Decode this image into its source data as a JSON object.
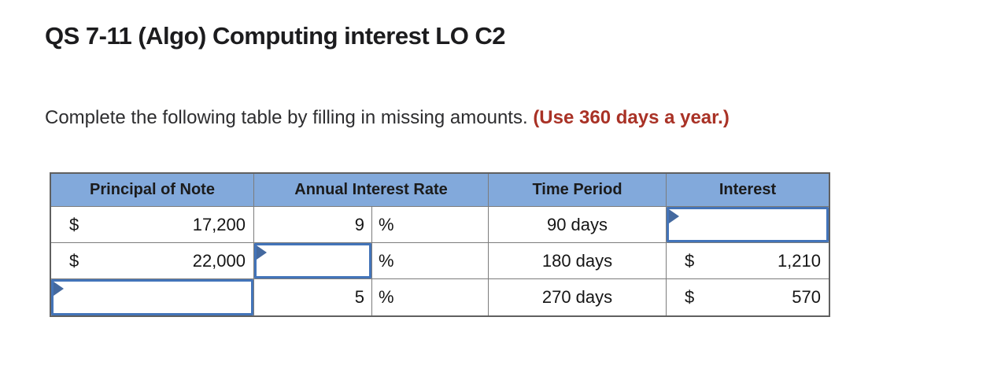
{
  "page": {
    "title": "QS 7-11 (Algo) Computing interest LO C2",
    "instruction_main": "Complete the following table by filling in missing amounts. ",
    "instruction_emphasis": "(Use 360 days a year.)"
  },
  "colors": {
    "header_bg": "#82a9db",
    "grid_line": "#7c7c7c",
    "table_outer_border": "#606060",
    "input_border": "#4374b9",
    "flag_blue": "#44699f",
    "emphasis_red": "#a93226"
  },
  "table": {
    "column_headers": [
      "Principal of Note",
      "Annual Interest Rate",
      "Time Period",
      "Interest"
    ],
    "rows": [
      {
        "principal_prefix": "$",
        "principal_amount": "17,200",
        "rate_value": "9",
        "rate_unit": "%",
        "time_period": "90 days",
        "interest_input_value": ""
      },
      {
        "principal_prefix": "$",
        "principal_amount": "22,000",
        "rate_input_value": "",
        "rate_unit": "%",
        "time_period": "180 days",
        "interest_prefix": "$",
        "interest_amount": "1,210"
      },
      {
        "principal_input_value": "",
        "rate_value": "5",
        "rate_unit": "%",
        "time_period": "270 days",
        "interest_prefix": "$",
        "interest_amount": "570"
      }
    ]
  }
}
